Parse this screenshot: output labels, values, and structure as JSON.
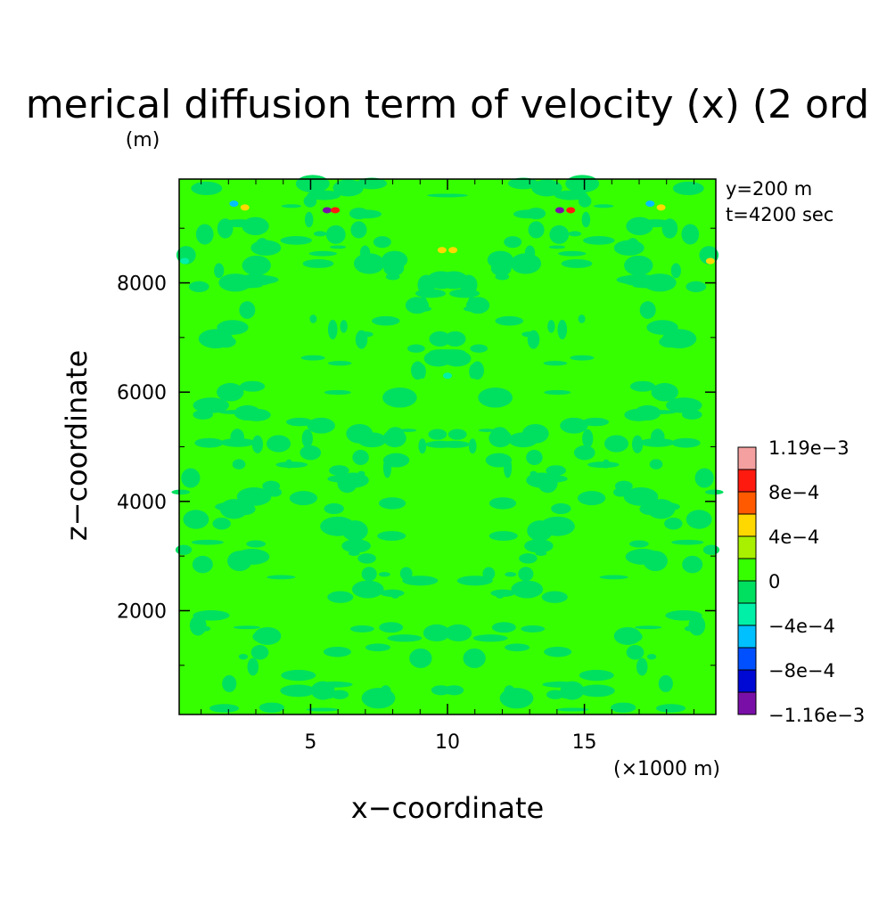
{
  "chart_data": {
    "type": "heatmap",
    "title": "merical diffusion term of velocity (x) (2 ord",
    "xlabel": "x−coordinate",
    "ylabel": "z−coordinate",
    "x_unit": "(×1000 m)",
    "y_unit": "(m)",
    "xlim": [
      0.2,
      19.8
    ],
    "ylim": [
      100,
      9900
    ],
    "x_ticks": [
      5,
      10,
      15
    ],
    "x_tick_labels": [
      "5",
      "10",
      "15"
    ],
    "y_ticks": [
      2000,
      4000,
      6000,
      8000
    ],
    "y_tick_labels": [
      "2000",
      "4000",
      "6000",
      "8000"
    ],
    "annotations": [
      "y=200 m",
      "t=4200 sec"
    ],
    "colorbar": {
      "label_values": [
        "1.19e−3",
        "8e−4",
        "4e−4",
        "0",
        "−4e−4",
        "−8e−4",
        "−1.16e−3"
      ],
      "levels": [
        -0.00116,
        -0.001,
        -0.0008,
        -0.0006,
        -0.0004,
        -0.0002,
        0,
        0.0002,
        0.0004,
        0.0006,
        0.0008,
        0.001,
        0.00119
      ],
      "colors": [
        "#7a0fa8",
        "#0008d4",
        "#0050ff",
        "#00c0ff",
        "#00f0a8",
        "#00e060",
        "#36ff00",
        "#a8f000",
        "#ffd800",
        "#ff5a00",
        "#ff1a10",
        "#f4a0a0"
      ]
    },
    "field": {
      "background_value": 0.0001,
      "notes": "Mostly near-zero field (light-green band 0 to 2e-4) with darker-green (-2e-4 to 0) symmetric structures about x=10; small extreme features near the top boundary.",
      "features": [
        {
          "x": 5.6,
          "z": 9330,
          "value": -0.00108
        },
        {
          "x": 5.9,
          "z": 9330,
          "value": 0.00095
        },
        {
          "x": 14.1,
          "z": 9330,
          "value": -0.00108
        },
        {
          "x": 14.5,
          "z": 9330,
          "value": 0.00095
        },
        {
          "x": 2.2,
          "z": 9450,
          "value": -0.00045
        },
        {
          "x": 2.6,
          "z": 9380,
          "value": 0.0005
        },
        {
          "x": 17.4,
          "z": 9450,
          "value": -0.00045
        },
        {
          "x": 17.8,
          "z": 9380,
          "value": 0.0005
        },
        {
          "x": 10.2,
          "z": 8600,
          "value": 0.00045
        },
        {
          "x": 9.8,
          "z": 8600,
          "value": 0.00045
        },
        {
          "x": 10.0,
          "z": 6300,
          "value": -0.0003
        },
        {
          "x": 0.4,
          "z": 8400,
          "value": -0.0004
        },
        {
          "x": 19.6,
          "z": 8400,
          "value": 0.0004
        }
      ]
    }
  }
}
